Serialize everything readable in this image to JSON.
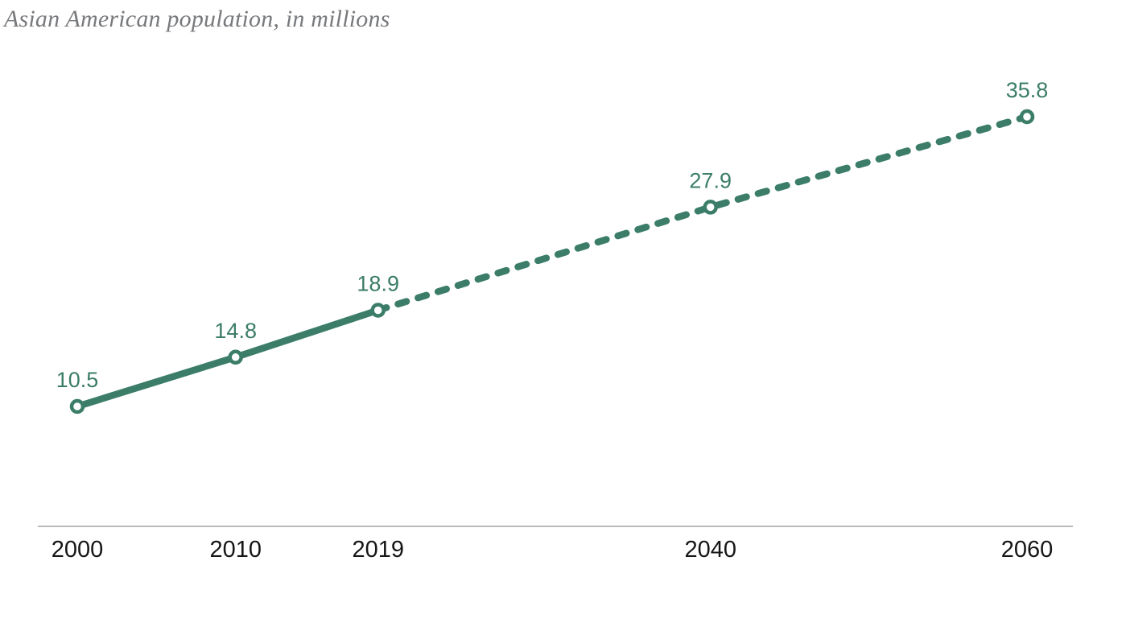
{
  "header": {
    "title": "Asian American population, in millions"
  },
  "chart_data": {
    "type": "line",
    "title": "Asian American population, in millions",
    "x": [
      2000,
      2010,
      2019,
      2040,
      2060
    ],
    "values": [
      10.5,
      14.8,
      18.9,
      27.9,
      35.8
    ],
    "data_labels": [
      "10.5",
      "14.8",
      "18.9",
      "27.9",
      "35.8"
    ],
    "x_tick_labels": [
      "2000",
      "2010",
      "2019",
      "2040",
      "2060"
    ],
    "solid_segment_x": [
      2000,
      2019
    ],
    "dashed_segment_x": [
      2019,
      2060
    ],
    "xlim": [
      2000,
      2060
    ],
    "ylim": [
      10.5,
      35.8
    ],
    "xlabel": "",
    "ylabel": "",
    "grid": false,
    "legend": "none",
    "colors": {
      "line": "#3b7d68",
      "marker_fill": "#ffffff",
      "marker_stroke": "#3b7d68",
      "data_label": "#3b7d68",
      "tick_label": "#161616",
      "axis_line": "#b9babc",
      "title": "#77797c",
      "background": "#ffffff"
    }
  }
}
